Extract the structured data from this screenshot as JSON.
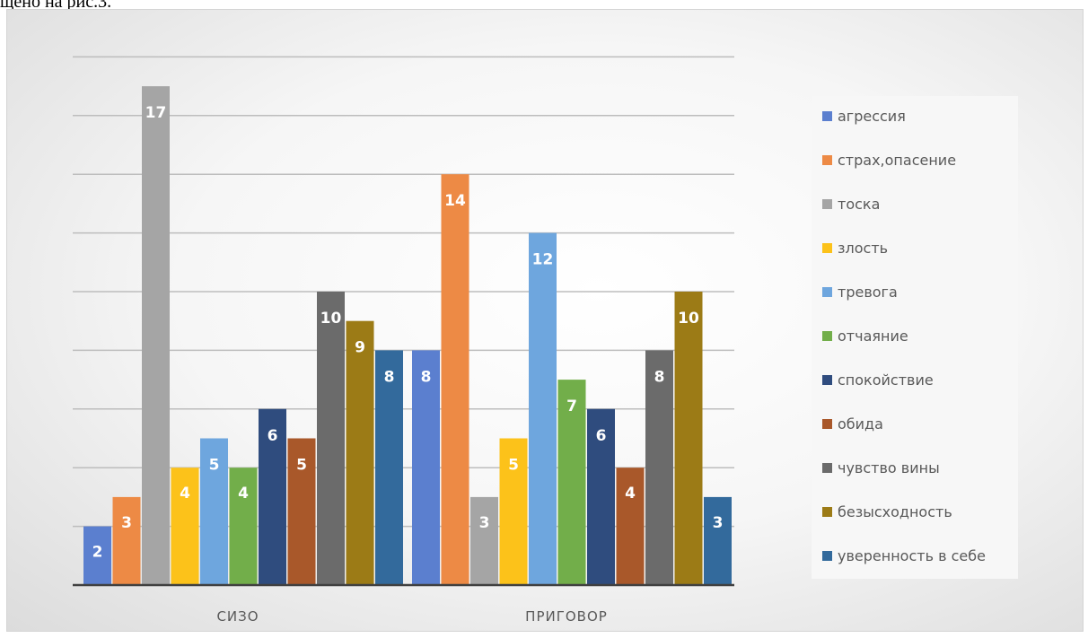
{
  "caption": "щено на рис.3.",
  "chart_data": {
    "type": "bar",
    "categories": [
      "СИЗО",
      "ПРИГОВОР"
    ],
    "ylim": [
      0,
      18
    ],
    "grid": true,
    "legend_position": "right",
    "series": [
      {
        "name": "агрессия",
        "color": "#5b7fcf",
        "values": [
          2,
          8
        ]
      },
      {
        "name": "страх,опасение",
        "color": "#ed8a45",
        "values": [
          3,
          14
        ]
      },
      {
        "name": "тоска",
        "color": "#a5a5a5",
        "values": [
          17,
          3
        ]
      },
      {
        "name": "злость",
        "color": "#fcc21a",
        "values": [
          4,
          5
        ]
      },
      {
        "name": "тревога",
        "color": "#6ea6de",
        "values": [
          5,
          12
        ]
      },
      {
        "name": "отчаяние",
        "color": "#72ae4a",
        "values": [
          4,
          7
        ]
      },
      {
        "name": "спокойствие",
        "color": "#2f4c7e",
        "values": [
          6,
          6
        ]
      },
      {
        "name": "обида",
        "color": "#a9582a",
        "values": [
          5,
          4
        ]
      },
      {
        "name": "чувство вины",
        "color": "#6b6b6b",
        "values": [
          10,
          8
        ]
      },
      {
        "name": "безысходность",
        "color": "#9c7b16",
        "values": [
          9,
          10
        ]
      },
      {
        "name": "уверенность в себе",
        "color": "#336a9c",
        "values": [
          8,
          3
        ]
      }
    ]
  }
}
